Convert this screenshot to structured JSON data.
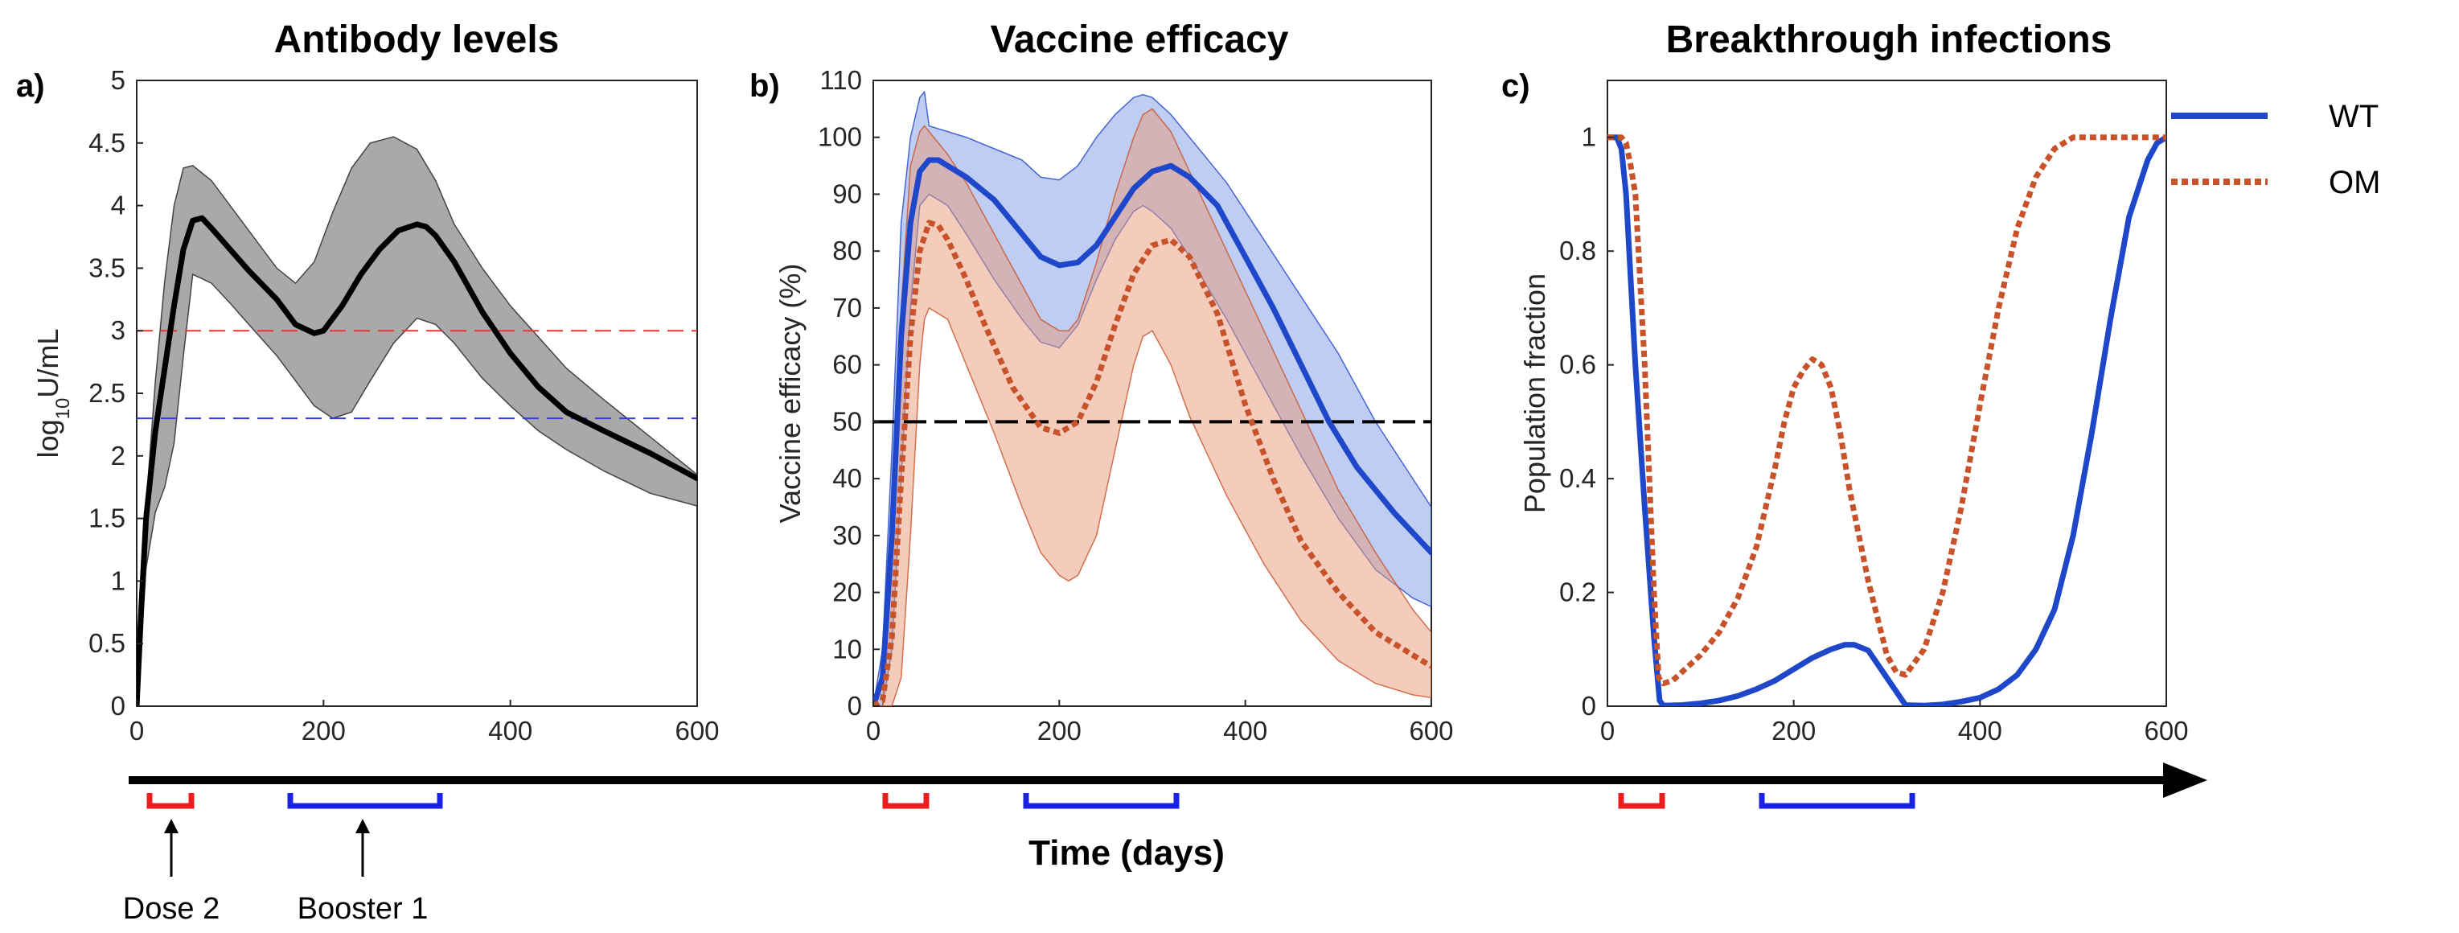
{
  "colors": {
    "wt": "#1f47c9",
    "om": "#c8522a",
    "band_gray": "#a9a9a9",
    "band_blue": "#7f9ce6",
    "band_orange": "#e89978",
    "thresh_red": "#ee3333",
    "thresh_blue": "#3a3adf",
    "bracket_red": "#ee1c1c",
    "bracket_blue": "#1a22e6"
  },
  "legend": {
    "wt_label": "WT",
    "om_label": "OM"
  },
  "timeline": {
    "xlabel": "Time (days)",
    "dose_label": "Dose 2",
    "booster_label": "Booster 1"
  },
  "chart_data": [
    {
      "type": "line",
      "panel": "a)",
      "title": "Antibody levels",
      "xlabel": "",
      "ylabel_prefix": "log",
      "ylabel_sub": "10",
      "ylabel_suffix": "U/mL",
      "xlim": [
        0,
        600
      ],
      "ylim": [
        0,
        5
      ],
      "xticks": [
        0,
        200,
        400,
        600
      ],
      "yticks": [
        0,
        0.5,
        1,
        1.5,
        2,
        2.5,
        3,
        3.5,
        4,
        4.5,
        5
      ],
      "reference_lines": [
        {
          "y": 3.0,
          "style": "dashed",
          "color": "red"
        },
        {
          "y": 2.3,
          "style": "dashed",
          "color": "blue"
        }
      ],
      "series": [
        {
          "kind": "band",
          "x": [
            0,
            5,
            10,
            20,
            30,
            40,
            50,
            60,
            80,
            100,
            120,
            150,
            170,
            190,
            210,
            230,
            250,
            275,
            300,
            320,
            340,
            370,
            400,
            430,
            460,
            500,
            550,
            600
          ],
          "upper": [
            0.05,
            0.9,
            1.6,
            2.6,
            3.4,
            4.0,
            4.3,
            4.32,
            4.2,
            4.0,
            3.8,
            3.5,
            3.38,
            3.55,
            3.95,
            4.3,
            4.5,
            4.55,
            4.45,
            4.2,
            3.85,
            3.5,
            3.2,
            2.95,
            2.7,
            2.45,
            2.15,
            1.85
          ],
          "lower": [
            0.0,
            0.5,
            1.1,
            1.55,
            1.75,
            2.1,
            2.8,
            3.45,
            3.38,
            3.22,
            3.05,
            2.8,
            2.6,
            2.4,
            2.3,
            2.35,
            2.6,
            2.9,
            3.1,
            3.05,
            2.9,
            2.62,
            2.4,
            2.2,
            2.05,
            1.88,
            1.7,
            1.6
          ]
        },
        {
          "kind": "line",
          "x": [
            0,
            5,
            10,
            15,
            20,
            30,
            40,
            50,
            60,
            70,
            80,
            100,
            120,
            150,
            170,
            190,
            200,
            220,
            240,
            260,
            280,
            300,
            310,
            320,
            340,
            370,
            400,
            430,
            460,
            500,
            550,
            600
          ],
          "values": [
            0.0,
            0.8,
            1.5,
            1.85,
            2.2,
            2.7,
            3.2,
            3.65,
            3.88,
            3.9,
            3.82,
            3.65,
            3.48,
            3.25,
            3.05,
            2.98,
            3.0,
            3.2,
            3.45,
            3.65,
            3.8,
            3.85,
            3.83,
            3.76,
            3.55,
            3.15,
            2.82,
            2.55,
            2.35,
            2.2,
            2.02,
            1.82
          ]
        }
      ]
    },
    {
      "type": "line",
      "panel": "b)",
      "title": "Vaccine efficacy",
      "xlabel": "",
      "ylabel": "Vaccine efficacy (%)",
      "xlim": [
        0,
        600
      ],
      "ylim": [
        0,
        110
      ],
      "xticks": [
        0,
        200,
        400,
        600
      ],
      "yticks": [
        0,
        10,
        20,
        30,
        40,
        50,
        60,
        70,
        80,
        90,
        100,
        110
      ],
      "reference_lines": [
        {
          "y": 50,
          "style": "dashed",
          "color": "black"
        }
      ],
      "series": [
        {
          "name": "WT",
          "kind": "band",
          "x": [
            0,
            10,
            20,
            30,
            40,
            50,
            55,
            60,
            80,
            100,
            130,
            160,
            180,
            200,
            220,
            240,
            260,
            280,
            290,
            300,
            320,
            340,
            380,
            420,
            460,
            500,
            540,
            580,
            600
          ],
          "upper": [
            0,
            10,
            45,
            85,
            100,
            107,
            108,
            102,
            101,
            100,
            98,
            96,
            93,
            92.5,
            95,
            100,
            104,
            107,
            107.5,
            107,
            104,
            100,
            92,
            82,
            72,
            62,
            50,
            40,
            35
          ],
          "lower": [
            0,
            0,
            10,
            40,
            70,
            88,
            89,
            90,
            88,
            83,
            75,
            68,
            64,
            63,
            67,
            75,
            82,
            87,
            88,
            87,
            84,
            79,
            68,
            56,
            44,
            33,
            24,
            19,
            17.5
          ]
        },
        {
          "name": "OM",
          "kind": "band",
          "x": [
            0,
            10,
            20,
            30,
            40,
            50,
            55,
            60,
            80,
            100,
            130,
            160,
            180,
            200,
            210,
            220,
            240,
            260,
            280,
            290,
            300,
            320,
            340,
            380,
            420,
            460,
            500,
            540,
            580,
            600
          ],
          "upper": [
            0,
            0,
            30,
            70,
            95,
            101,
            102,
            101,
            97,
            92,
            83,
            74,
            68,
            66,
            66,
            68,
            78,
            90,
            100,
            104,
            105,
            101,
            94,
            80,
            66,
            52,
            38,
            27,
            17,
            13
          ],
          "lower": [
            0,
            0,
            0,
            5,
            30,
            60,
            68,
            70,
            68,
            60,
            48,
            35,
            27,
            23,
            22,
            23,
            30,
            45,
            60,
            65,
            66,
            60,
            51,
            37,
            25,
            15,
            8,
            4,
            2,
            1.5
          ]
        },
        {
          "name": "WT",
          "kind": "line",
          "x": [
            0,
            10,
            20,
            30,
            40,
            50,
            60,
            70,
            80,
            100,
            130,
            160,
            180,
            200,
            220,
            240,
            260,
            280,
            300,
            320,
            340,
            370,
            400,
            430,
            460,
            490,
            520,
            560,
            600
          ],
          "values": [
            0,
            5,
            30,
            65,
            85,
            94,
            96,
            96,
            95,
            93,
            89,
            83,
            79,
            77.5,
            78,
            81,
            86,
            91,
            94,
            95,
            93,
            88,
            79,
            70,
            60,
            50,
            42,
            34,
            27
          ]
        },
        {
          "name": "OM",
          "kind": "line",
          "x": [
            0,
            10,
            20,
            30,
            40,
            50,
            60,
            70,
            80,
            100,
            120,
            150,
            180,
            200,
            220,
            240,
            260,
            280,
            300,
            320,
            340,
            370,
            400,
            430,
            460,
            500,
            540,
            580,
            600
          ],
          "values": [
            0,
            1,
            12,
            40,
            65,
            80,
            85,
            84.5,
            82,
            75,
            67,
            56,
            49,
            48,
            50,
            57,
            67,
            76,
            81,
            82,
            79,
            69,
            53,
            40,
            29,
            20,
            13,
            9,
            7
          ]
        }
      ]
    },
    {
      "type": "line",
      "panel": "c)",
      "title": "Breakthrough infections",
      "xlabel": "",
      "ylabel": "Population fraction",
      "xlim": [
        0,
        600
      ],
      "ylim": [
        0,
        1.1
      ],
      "xticks": [
        0,
        200,
        400,
        600
      ],
      "yticks": [
        0,
        0.2,
        0.4,
        0.6,
        0.8,
        1
      ],
      "series": [
        {
          "name": "WT",
          "kind": "line",
          "x": [
            0,
            10,
            15,
            20,
            30,
            40,
            50,
            56,
            60,
            80,
            100,
            120,
            140,
            160,
            180,
            200,
            220,
            240,
            255,
            265,
            280,
            300,
            320,
            340,
            360,
            380,
            400,
            420,
            440,
            460,
            480,
            500,
            520,
            540,
            560,
            580,
            590,
            600
          ],
          "values": [
            1,
            1,
            0.98,
            0.9,
            0.6,
            0.35,
            0.12,
            0.01,
            0.001,
            0.002,
            0.005,
            0.01,
            0.018,
            0.03,
            0.045,
            0.065,
            0.085,
            0.1,
            0.108,
            0.108,
            0.098,
            0.05,
            0.002,
            0.001,
            0.003,
            0.008,
            0.015,
            0.03,
            0.055,
            0.1,
            0.17,
            0.3,
            0.48,
            0.68,
            0.86,
            0.96,
            0.99,
            1.0
          ]
        },
        {
          "name": "OM",
          "kind": "line",
          "x": [
            0,
            10,
            15,
            20,
            25,
            30,
            40,
            50,
            55,
            60,
            70,
            80,
            100,
            120,
            140,
            160,
            180,
            190,
            200,
            210,
            220,
            230,
            240,
            250,
            260,
            280,
            300,
            310,
            320,
            340,
            360,
            380,
            400,
            420,
            440,
            460,
            480,
            500,
            520,
            550,
            600
          ],
          "values": [
            1,
            1,
            1,
            0.99,
            0.95,
            0.9,
            0.6,
            0.2,
            0.05,
            0.04,
            0.045,
            0.06,
            0.09,
            0.13,
            0.19,
            0.28,
            0.42,
            0.5,
            0.56,
            0.59,
            0.61,
            0.6,
            0.56,
            0.48,
            0.38,
            0.22,
            0.09,
            0.06,
            0.055,
            0.1,
            0.2,
            0.35,
            0.53,
            0.7,
            0.84,
            0.93,
            0.98,
            1.0,
            1.0,
            1.0,
            1.0
          ]
        }
      ]
    }
  ]
}
